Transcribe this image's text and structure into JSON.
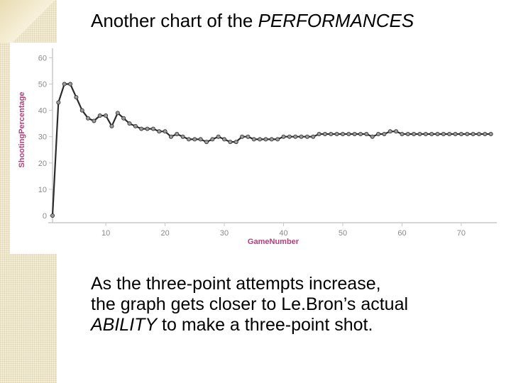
{
  "slide": {
    "title_prefix": "Another chart of the ",
    "title_emphasis": "PERFORMANCES",
    "body_line1": "As the three-point attempts increase,",
    "body_line2": "the graph gets closer to Le.Bron’s actual",
    "body_line3_emphasis": "ABILITY",
    "body_line3_rest": " to make a three-point shot."
  },
  "colors": {
    "line": "#2b2b2b",
    "marker": "#9a9a9a",
    "axis_text": "#8a8a8a",
    "axis_label": "#b0407a",
    "axis_line": "#c8c8c8"
  },
  "chart_data": {
    "type": "line",
    "xlabel": "GameNumber",
    "ylabel": "ShootingPercentage",
    "xlim": [
      1,
      76
    ],
    "ylim": [
      0,
      62
    ],
    "xticks": [
      10,
      20,
      30,
      40,
      50,
      60,
      70
    ],
    "yticks": [
      0,
      10,
      20,
      30,
      40,
      50,
      60
    ],
    "grid": false,
    "legend": "none",
    "series": [
      {
        "x": [
          1,
          2,
          3,
          4,
          5,
          6,
          7,
          8,
          9,
          10,
          11,
          12,
          13,
          14,
          15,
          16,
          17,
          18,
          19,
          20,
          21,
          22,
          23,
          24,
          25,
          26,
          27,
          28,
          29,
          30,
          31,
          32,
          33,
          34,
          35,
          36,
          37,
          38,
          39,
          40,
          41,
          42,
          43,
          44,
          45,
          46,
          47,
          48,
          49,
          50,
          51,
          52,
          53,
          54,
          55,
          56,
          57,
          58,
          59,
          60,
          61,
          62,
          63,
          64,
          65,
          66,
          67,
          68,
          69,
          70,
          71,
          72,
          73,
          74,
          75
        ],
        "y": [
          0,
          43,
          50,
          50,
          45,
          40,
          37,
          36,
          38,
          38,
          34,
          39,
          37,
          35,
          34,
          33,
          33,
          33,
          32,
          32,
          30,
          31,
          30,
          29,
          29,
          29,
          28,
          29,
          30,
          29,
          28,
          28,
          30,
          30,
          29,
          29,
          29,
          29,
          29,
          30,
          30,
          30,
          30,
          30,
          30,
          31,
          31,
          31,
          31,
          31,
          31,
          31,
          31,
          31,
          30,
          31,
          31,
          32,
          32,
          31,
          31,
          31,
          31,
          31,
          31,
          31,
          31,
          31,
          31,
          31,
          31,
          31,
          31,
          31,
          31
        ]
      }
    ]
  }
}
